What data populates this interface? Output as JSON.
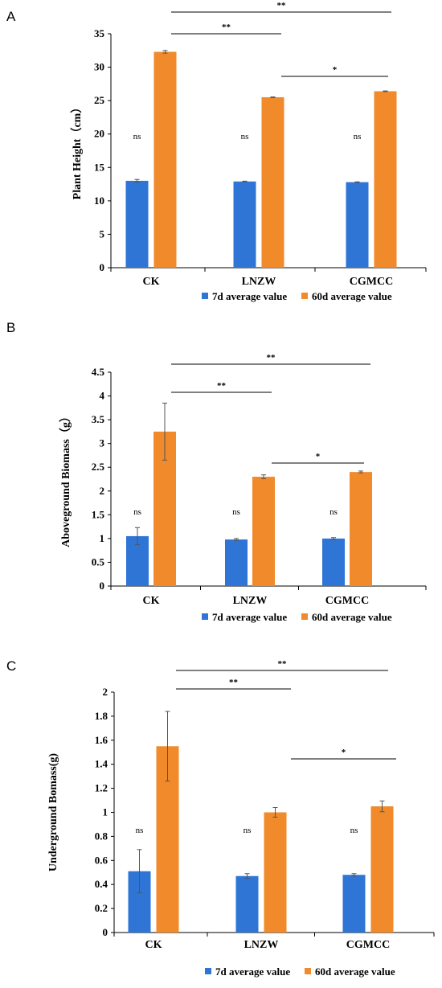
{
  "colors": {
    "series_7d": "#2E75D6",
    "series_60d": "#F08A2B",
    "axis": "#000000",
    "error": "#555555"
  },
  "chart_data": [
    {
      "panel": "A",
      "type": "bar",
      "title": "",
      "xlabel": "",
      "ylabel": "Plant Height（cm）",
      "ylim": [
        0,
        35
      ],
      "yticks": [
        "0",
        "5",
        "10",
        "15",
        "20",
        "25",
        "30",
        "35"
      ],
      "categories": [
        "CK",
        "LNZW",
        "CGMCC"
      ],
      "series": [
        {
          "name": "7d average value",
          "values": [
            13.0,
            12.9,
            12.8
          ],
          "errors": [
            0.2,
            0.05,
            0.05
          ]
        },
        {
          "name": "60d average value",
          "values": [
            32.3,
            25.5,
            26.4
          ],
          "errors": [
            0.2,
            0.05,
            0.05
          ]
        }
      ],
      "point_labels": [
        "ns",
        "ns",
        "ns"
      ],
      "comparisons": [
        {
          "from": "CK",
          "to": "CGMCC",
          "label": "**"
        },
        {
          "from": "CK",
          "to": "LNZW",
          "label": "**"
        },
        {
          "from": "LNZW",
          "to": "CGMCC",
          "label": "*"
        }
      ],
      "grid": false,
      "legend": "bottom"
    },
    {
      "panel": "B",
      "type": "bar",
      "title": "",
      "xlabel": "",
      "ylabel": "Aboveground Biomass（g）",
      "ylim": [
        0,
        4.5
      ],
      "yticks": [
        "0",
        "0.5",
        "1",
        "1.5",
        "2",
        "2.5",
        "3",
        "3.5",
        "4",
        "4.5"
      ],
      "categories": [
        "CK",
        "LNZW",
        "CGMCC"
      ],
      "series": [
        {
          "name": "7d average value",
          "values": [
            1.05,
            0.98,
            1.0
          ],
          "errors": [
            0.18,
            0.02,
            0.02
          ]
        },
        {
          "name": "60d average value",
          "values": [
            3.25,
            2.3,
            2.4
          ],
          "errors": [
            0.6,
            0.04,
            0.02
          ]
        }
      ],
      "point_labels": [
        "ns",
        "ns",
        "ns"
      ],
      "comparisons": [
        {
          "from": "CK",
          "to": "CGMCC",
          "label": "**"
        },
        {
          "from": "CK",
          "to": "LNZW",
          "label": "**"
        },
        {
          "from": "LNZW",
          "to": "CGMCC",
          "label": "*"
        }
      ],
      "grid": false,
      "legend": "bottom"
    },
    {
      "panel": "C",
      "type": "bar",
      "title": "",
      "xlabel": "",
      "ylabel": "Underground Bomass(g)",
      "ylim": [
        0,
        2
      ],
      "yticks": [
        "0",
        "0.2",
        "0.4",
        "0.6",
        "0.8",
        "1",
        "1.2",
        "1.4",
        "1.6",
        "1.8",
        "2"
      ],
      "categories": [
        "CK",
        "LNZW",
        "CGMCC"
      ],
      "series": [
        {
          "name": "7d average value",
          "values": [
            0.51,
            0.47,
            0.48
          ],
          "errors": [
            0.18,
            0.02,
            0.01
          ]
        },
        {
          "name": "60d average value",
          "values": [
            1.55,
            1.0,
            1.05
          ],
          "errors": [
            0.29,
            0.04,
            0.045
          ]
        }
      ],
      "point_labels": [
        "ns",
        "ns",
        "ns"
      ],
      "comparisons": [
        {
          "from": "CK",
          "to": "CGMCC",
          "label": "**"
        },
        {
          "from": "CK",
          "to": "LNZW",
          "label": "**"
        },
        {
          "from": "LNZW",
          "to": "CGMCC",
          "label": "*"
        }
      ],
      "grid": false,
      "legend": "bottom"
    }
  ]
}
